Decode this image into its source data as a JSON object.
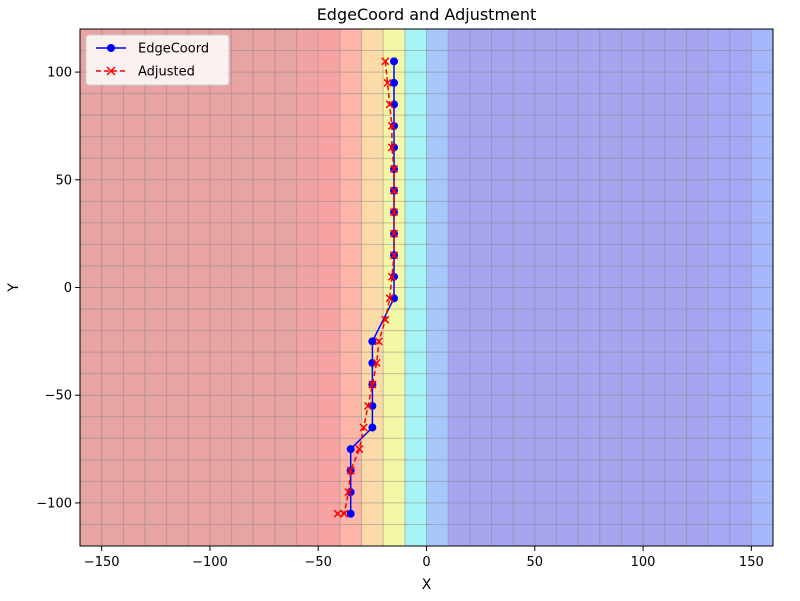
{
  "chart_data": {
    "type": "line",
    "title": "EdgeCoord and Adjustment",
    "xlabel": "X",
    "ylabel": "Y",
    "xlim": [
      -160,
      160
    ],
    "ylim": [
      -120,
      120
    ],
    "xticks": [
      -150,
      -100,
      -50,
      0,
      50,
      100,
      150
    ],
    "yticks": [
      -100,
      -50,
      0,
      50,
      100
    ],
    "xtick_labels": [
      "−150",
      "−100",
      "−50",
      "0",
      "50",
      "100",
      "150"
    ],
    "ytick_labels": [
      "−100",
      "−50",
      "0",
      "50",
      "100"
    ],
    "grid": true,
    "legend_position": "upper-left",
    "background_heatmap": {
      "cell_width": 10,
      "cell_height": 10,
      "x_bands": [
        {
          "x0": -160,
          "x1": -60,
          "color": "#e8a3a3"
        },
        {
          "x0": -60,
          "x1": -50,
          "color": "#f0a3a3"
        },
        {
          "x0": -50,
          "x1": -40,
          "color": "#f7a3a3"
        },
        {
          "x0": -40,
          "x1": -30,
          "color": "#fbb6a8"
        },
        {
          "x0": -30,
          "x1": -20,
          "color": "#fddba8"
        },
        {
          "x0": -20,
          "x1": -10,
          "color": "#f3f7a6"
        },
        {
          "x0": -10,
          "x1": 0,
          "color": "#a6f2f5"
        },
        {
          "x0": 0,
          "x1": 10,
          "color": "#a6c7fa"
        },
        {
          "x0": 10,
          "x1": 130,
          "color": "#a5a6ef"
        },
        {
          "x0": 130,
          "x1": 150,
          "color": "#a5a8f5"
        },
        {
          "x0": 150,
          "x1": 160,
          "color": "#a5b6fb"
        }
      ]
    },
    "series": [
      {
        "name": "EdgeCoord",
        "color": "#0000ff",
        "marker": "circle",
        "line_style": "solid",
        "x": [
          -15,
          -15,
          -15,
          -15,
          -15,
          -15,
          -15,
          -15,
          -15,
          -15,
          -15,
          -15,
          -25,
          -25,
          -25,
          -25,
          -25,
          -35,
          -35,
          -35,
          -35
        ],
        "y": [
          105,
          95,
          85,
          75,
          65,
          55,
          45,
          35,
          25,
          15,
          5,
          -5,
          -25,
          -35,
          -45,
          -55,
          -65,
          -75,
          -85,
          -95,
          -105
        ]
      },
      {
        "name": "Adjusted",
        "color": "#ff0000",
        "marker": "x",
        "line_style": "dashed",
        "x": [
          -19,
          -18,
          -17,
          -16,
          -16,
          -15,
          -15,
          -15,
          -15,
          -15,
          -16,
          -17,
          -19,
          -22,
          -23,
          -25,
          -27,
          -29,
          -31,
          -35,
          -36,
          -38,
          -41
        ],
        "y": [
          105,
          95,
          85,
          75,
          65,
          55,
          45,
          35,
          25,
          15,
          5,
          -5,
          -15,
          -25,
          -35,
          -45,
          -55,
          -65,
          -75,
          -85,
          -95,
          -105,
          -105
        ]
      }
    ]
  }
}
